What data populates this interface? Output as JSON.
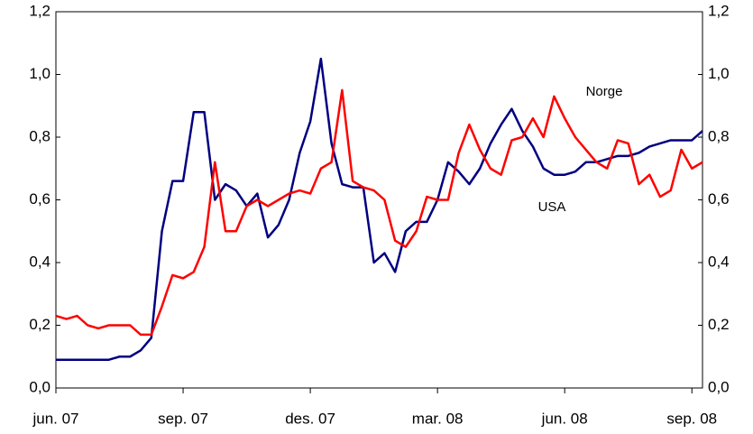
{
  "chart_data": {
    "type": "line",
    "categories": [
      "jun. 07",
      null,
      null,
      null,
      null,
      null,
      null,
      null,
      null,
      null,
      null,
      null,
      "sep. 07",
      null,
      null,
      null,
      null,
      null,
      null,
      null,
      null,
      null,
      null,
      null,
      "des. 07",
      null,
      null,
      null,
      null,
      null,
      null,
      null,
      null,
      null,
      null,
      null,
      "mar. 08",
      null,
      null,
      null,
      null,
      null,
      null,
      null,
      null,
      null,
      null,
      null,
      "jun. 08",
      null,
      null,
      null,
      null,
      null,
      null,
      null,
      null,
      null,
      null,
      null,
      "sep. 08",
      null
    ],
    "series": [
      {
        "name": "USA",
        "color": "#000080",
        "values": [
          0.09,
          0.09,
          0.09,
          0.09,
          0.09,
          0.09,
          0.1,
          0.1,
          0.12,
          0.16,
          0.5,
          0.66,
          0.66,
          0.88,
          0.88,
          0.6,
          0.65,
          0.63,
          0.58,
          0.62,
          0.48,
          0.52,
          0.6,
          0.75,
          0.85,
          1.05,
          0.78,
          0.65,
          0.64,
          0.64,
          0.4,
          0.43,
          0.37,
          0.5,
          0.53,
          0.53,
          0.6,
          0.72,
          0.69,
          0.65,
          0.7,
          0.78,
          0.84,
          0.89,
          0.82,
          0.77,
          0.7,
          0.68,
          0.68,
          0.69,
          0.72,
          0.72,
          0.73,
          0.74,
          0.74,
          0.75,
          0.77,
          0.78,
          0.79,
          0.79,
          0.79,
          0.82
        ]
      },
      {
        "name": "Norge",
        "color": "#ff0000",
        "values": [
          0.23,
          0.22,
          0.23,
          0.2,
          0.19,
          0.2,
          0.2,
          0.2,
          0.17,
          0.17,
          0.26,
          0.36,
          0.35,
          0.37,
          0.45,
          0.72,
          0.5,
          0.5,
          0.58,
          0.6,
          0.58,
          0.6,
          0.62,
          0.63,
          0.62,
          0.7,
          0.72,
          0.95,
          0.66,
          0.64,
          0.63,
          0.6,
          0.47,
          0.45,
          0.5,
          0.61,
          0.6,
          0.6,
          0.75,
          0.84,
          0.76,
          0.7,
          0.68,
          0.79,
          0.8,
          0.86,
          0.8,
          0.93,
          0.86,
          0.8,
          0.76,
          0.72,
          0.7,
          0.79,
          0.78,
          0.65,
          0.68,
          0.61,
          0.63,
          0.76,
          0.7,
          0.72
        ]
      }
    ],
    "ylim": [
      0,
      1.2
    ],
    "yticks": [
      {
        "value": 0,
        "label": "0,0"
      },
      {
        "value": 0.2,
        "label": "0,2"
      },
      {
        "value": 0.4,
        "label": "0,4"
      },
      {
        "value": 0.6,
        "label": "0,6"
      },
      {
        "value": 0.8,
        "label": "0,8"
      },
      {
        "value": 1.0,
        "label": "1,0"
      },
      {
        "value": 1.2,
        "label": "1,2"
      }
    ],
    "y2lim": [
      0,
      1.2
    ],
    "y2ticks": [
      {
        "value": 0,
        "label": "0,0"
      },
      {
        "value": 0.2,
        "label": "0,2"
      },
      {
        "value": 0.4,
        "label": "0,4"
      },
      {
        "value": 0.6,
        "label": "0,6"
      },
      {
        "value": 0.8,
        "label": "0,8"
      },
      {
        "value": 1.0,
        "label": "1,0"
      },
      {
        "value": 1.2,
        "label": "1,2"
      }
    ],
    "annotations": [
      {
        "text": "Norge",
        "color": "#ff0000"
      },
      {
        "text": "USA",
        "color": "#000080"
      }
    ]
  }
}
